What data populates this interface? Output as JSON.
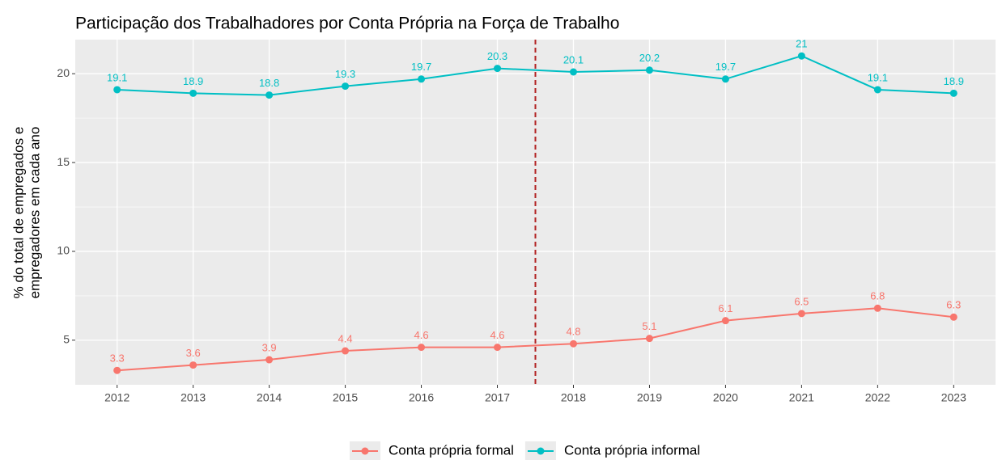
{
  "chart_data": {
    "type": "line",
    "title": "Participação dos Trabalhadores por Conta Própria na Força de Trabalho",
    "ylabel": [
      "% do total de empregados e",
      "empregadores em cada ano"
    ],
    "x": [
      2012,
      2013,
      2014,
      2015,
      2016,
      2017,
      2018,
      2019,
      2020,
      2021,
      2022,
      2023
    ],
    "xlim": [
      2011.45,
      2023.55
    ],
    "xticks": [
      2012,
      2013,
      2014,
      2015,
      2016,
      2017,
      2018,
      2019,
      2020,
      2021,
      2022,
      2023
    ],
    "ylim": [
      2.49,
      21.92
    ],
    "yticks": [
      5,
      10,
      15,
      20
    ],
    "y_minor_ticks": [
      7.5,
      12.5,
      17.5
    ],
    "grid": true,
    "legend": "bottom",
    "vline": {
      "x": 2017.5,
      "color": "#b22222"
    },
    "series": [
      {
        "name": "Conta própria formal",
        "color": "#F8766D",
        "values": [
          3.3,
          3.6,
          3.9,
          4.4,
          4.6,
          4.6,
          4.8,
          5.1,
          6.1,
          6.5,
          6.8,
          6.3
        ]
      },
      {
        "name": "Conta própria informal",
        "color": "#00BFC4",
        "values": [
          19.1,
          18.9,
          18.8,
          19.3,
          19.7,
          20.3,
          20.1,
          20.2,
          19.7,
          21,
          19.1,
          18.9
        ]
      }
    ]
  }
}
